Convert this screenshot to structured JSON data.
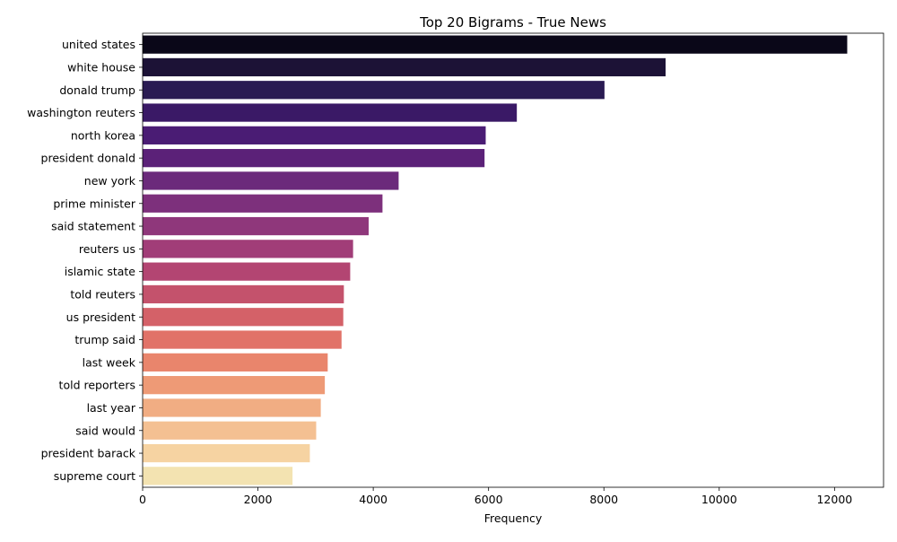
{
  "chart_data": {
    "type": "bar",
    "orientation": "horizontal",
    "title": "Top 20 Bigrams - True News",
    "xlabel": "Frequency",
    "ylabel": "",
    "xlim": [
      0,
      12850
    ],
    "xticks": [
      0,
      2000,
      4000,
      6000,
      8000,
      10000,
      12000
    ],
    "grid": false,
    "legend": "none",
    "categories": [
      "united states",
      "white house",
      "donald trump",
      "washington reuters",
      "north korea",
      "president donald",
      "new york",
      "prime minister",
      "said statement",
      "reuters us",
      "islamic state",
      "told reuters",
      "us president",
      "trump said",
      "last week",
      "told reporters",
      "last year",
      "said would",
      "president barack",
      "supreme court"
    ],
    "values": [
      12220,
      9070,
      8010,
      6490,
      5950,
      5930,
      4440,
      4160,
      3920,
      3650,
      3600,
      3490,
      3480,
      3450,
      3210,
      3160,
      3090,
      3010,
      2900,
      2600
    ],
    "colors": [
      "#0a0718",
      "#1c1236",
      "#2a1b52",
      "#3a1966",
      "#4a1c74",
      "#5b2178",
      "#6b2a7b",
      "#7d307c",
      "#8f377b",
      "#a13d78",
      "#b34572",
      "#c4526c",
      "#d46168",
      "#e17268",
      "#e9856c",
      "#ee9a76",
      "#f1ad83",
      "#f4c092",
      "#f6d3a2",
      "#f3e3b1"
    ]
  }
}
